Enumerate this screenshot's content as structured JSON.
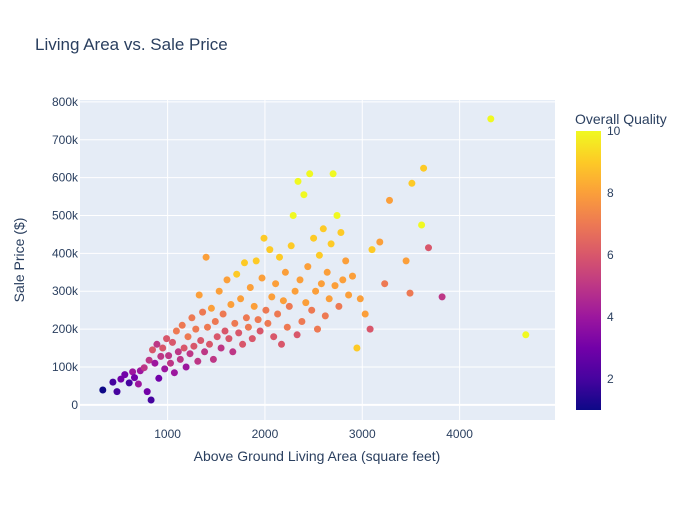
{
  "chart_data": {
    "type": "scatter",
    "title": "Living Area vs. Sale Price",
    "xlabel": "Above Ground Living Area (square feet)",
    "ylabel": "Sale Price ($)",
    "xlim": [
      100,
      4980
    ],
    "ylim": [
      -40000,
      805000
    ],
    "xticks": [
      {
        "value": 1000,
        "label": "1000"
      },
      {
        "value": 2000,
        "label": "2000"
      },
      {
        "value": 3000,
        "label": "3000"
      },
      {
        "value": 4000,
        "label": "4000"
      }
    ],
    "yticks": [
      {
        "value": 0,
        "label": "0"
      },
      {
        "value": 100000,
        "label": "100k"
      },
      {
        "value": 200000,
        "label": "200k"
      },
      {
        "value": 300000,
        "label": "300k"
      },
      {
        "value": 400000,
        "label": "400k"
      },
      {
        "value": 500000,
        "label": "500k"
      },
      {
        "value": 600000,
        "label": "600k"
      },
      {
        "value": 700000,
        "label": "700k"
      },
      {
        "value": 800000,
        "label": "800k"
      }
    ],
    "grid": true,
    "plot_background": "#e5ecf6",
    "gridline_color": "#ffffff",
    "colorscale_name": "plasma",
    "colorscale": [
      "#0d0887",
      "#46039f",
      "#7201a8",
      "#9c179e",
      "#bd3786",
      "#d8576b",
      "#ed7953",
      "#fb9f3a",
      "#fdca26",
      "#f0f921"
    ],
    "colorbar": {
      "title": "Overall Quality",
      "range": [
        1,
        10
      ],
      "ticks": [
        {
          "value": 2,
          "label": "2"
        },
        {
          "value": 4,
          "label": "4"
        },
        {
          "value": 6,
          "label": "6"
        },
        {
          "value": 8,
          "label": "8"
        },
        {
          "value": 10,
          "label": "10"
        }
      ]
    },
    "series": [
      {
        "color_field": "Overall Quality",
        "points": [
          [
            334,
            39300,
            1
          ],
          [
            438,
            60000,
            2
          ],
          [
            480,
            35000,
            2
          ],
          [
            520,
            68000,
            3
          ],
          [
            560,
            80000,
            3
          ],
          [
            605,
            58000,
            2
          ],
          [
            640,
            87000,
            4
          ],
          [
            660,
            72000,
            3
          ],
          [
            700,
            55000,
            4
          ],
          [
            720,
            90000,
            4
          ],
          [
            760,
            98000,
            5
          ],
          [
            790,
            35000,
            3
          ],
          [
            810,
            118000,
            5
          ],
          [
            830,
            12800,
            2
          ],
          [
            845,
            145000,
            6
          ],
          [
            870,
            110000,
            4
          ],
          [
            890,
            160000,
            5
          ],
          [
            910,
            70000,
            3
          ],
          [
            930,
            128000,
            5
          ],
          [
            950,
            150000,
            6
          ],
          [
            970,
            95000,
            4
          ],
          [
            990,
            175000,
            6
          ],
          [
            1010,
            130000,
            5
          ],
          [
            1030,
            110000,
            5
          ],
          [
            1050,
            165000,
            6
          ],
          [
            1070,
            85000,
            4
          ],
          [
            1090,
            195000,
            7
          ],
          [
            1110,
            140000,
            5
          ],
          [
            1130,
            120000,
            5
          ],
          [
            1150,
            210000,
            7
          ],
          [
            1170,
            150000,
            6
          ],
          [
            1190,
            100000,
            4
          ],
          [
            1210,
            180000,
            7
          ],
          [
            1230,
            135000,
            5
          ],
          [
            1250,
            230000,
            7
          ],
          [
            1270,
            155000,
            6
          ],
          [
            1290,
            200000,
            7
          ],
          [
            1310,
            115000,
            5
          ],
          [
            1325,
            290000,
            8
          ],
          [
            1340,
            170000,
            6
          ],
          [
            1360,
            245000,
            7
          ],
          [
            1380,
            140000,
            5
          ],
          [
            1395,
            390000,
            8
          ],
          [
            1410,
            205000,
            7
          ],
          [
            1430,
            160000,
            6
          ],
          [
            1450,
            255000,
            8
          ],
          [
            1470,
            120000,
            5
          ],
          [
            1490,
            220000,
            7
          ],
          [
            1510,
            180000,
            6
          ],
          [
            1530,
            300000,
            8
          ],
          [
            1550,
            150000,
            5
          ],
          [
            1570,
            240000,
            7
          ],
          [
            1590,
            195000,
            6
          ],
          [
            1610,
            330000,
            8
          ],
          [
            1630,
            175000,
            6
          ],
          [
            1650,
            265000,
            8
          ],
          [
            1670,
            140000,
            5
          ],
          [
            1690,
            215000,
            7
          ],
          [
            1710,
            345000,
            9
          ],
          [
            1730,
            190000,
            6
          ],
          [
            1750,
            280000,
            8
          ],
          [
            1770,
            160000,
            6
          ],
          [
            1790,
            375000,
            9
          ],
          [
            1810,
            230000,
            7
          ],
          [
            1830,
            205000,
            7
          ],
          [
            1850,
            310000,
            8
          ],
          [
            1870,
            175000,
            6
          ],
          [
            1890,
            260000,
            8
          ],
          [
            1910,
            380000,
            9
          ],
          [
            1930,
            225000,
            7
          ],
          [
            1950,
            195000,
            6
          ],
          [
            1970,
            335000,
            8
          ],
          [
            1990,
            440000,
            9
          ],
          [
            2010,
            250000,
            7
          ],
          [
            2030,
            215000,
            7
          ],
          [
            2050,
            410000,
            9
          ],
          [
            2070,
            285000,
            8
          ],
          [
            2090,
            180000,
            6
          ],
          [
            2110,
            320000,
            8
          ],
          [
            2130,
            240000,
            7
          ],
          [
            2150,
            390000,
            9
          ],
          [
            2170,
            160000,
            6
          ],
          [
            2190,
            275000,
            8
          ],
          [
            2210,
            350000,
            8
          ],
          [
            2230,
            205000,
            7
          ],
          [
            2250,
            260000,
            7
          ],
          [
            2270,
            420000,
            9
          ],
          [
            2290,
            500000,
            10
          ],
          [
            2310,
            300000,
            8
          ],
          [
            2330,
            185000,
            6
          ],
          [
            2340,
            590000,
            10
          ],
          [
            2360,
            330000,
            8
          ],
          [
            2380,
            220000,
            7
          ],
          [
            2400,
            555000,
            10
          ],
          [
            2420,
            270000,
            8
          ],
          [
            2440,
            365000,
            8
          ],
          [
            2460,
            610000,
            10
          ],
          [
            2480,
            250000,
            7
          ],
          [
            2500,
            440000,
            9
          ],
          [
            2520,
            300000,
            8
          ],
          [
            2540,
            200000,
            7
          ],
          [
            2560,
            395000,
            9
          ],
          [
            2580,
            320000,
            8
          ],
          [
            2600,
            465000,
            9
          ],
          [
            2620,
            235000,
            7
          ],
          [
            2640,
            350000,
            8
          ],
          [
            2660,
            280000,
            8
          ],
          [
            2680,
            425000,
            9
          ],
          [
            2700,
            610000,
            10
          ],
          [
            2720,
            315000,
            8
          ],
          [
            2740,
            500000,
            10
          ],
          [
            2760,
            260000,
            7
          ],
          [
            2780,
            455000,
            9
          ],
          [
            2800,
            330000,
            8
          ],
          [
            2830,
            380000,
            8
          ],
          [
            2860,
            290000,
            8
          ],
          [
            2900,
            340000,
            8
          ],
          [
            2945,
            150000,
            9
          ],
          [
            2980,
            280000,
            8
          ],
          [
            3030,
            240000,
            8
          ],
          [
            3080,
            200000,
            6
          ],
          [
            3100,
            410000,
            9
          ],
          [
            3180,
            430000,
            8
          ],
          [
            3230,
            320000,
            7
          ],
          [
            3280,
            540000,
            8
          ],
          [
            3450,
            380000,
            8
          ],
          [
            3490,
            295000,
            7
          ],
          [
            3510,
            585000,
            9
          ],
          [
            3610,
            475000,
            10
          ],
          [
            3630,
            625000,
            9
          ],
          [
            3680,
            415000,
            6
          ],
          [
            3820,
            285000,
            5
          ],
          [
            4320,
            755000,
            10
          ],
          [
            4680,
            185000,
            10
          ]
        ]
      }
    ]
  }
}
